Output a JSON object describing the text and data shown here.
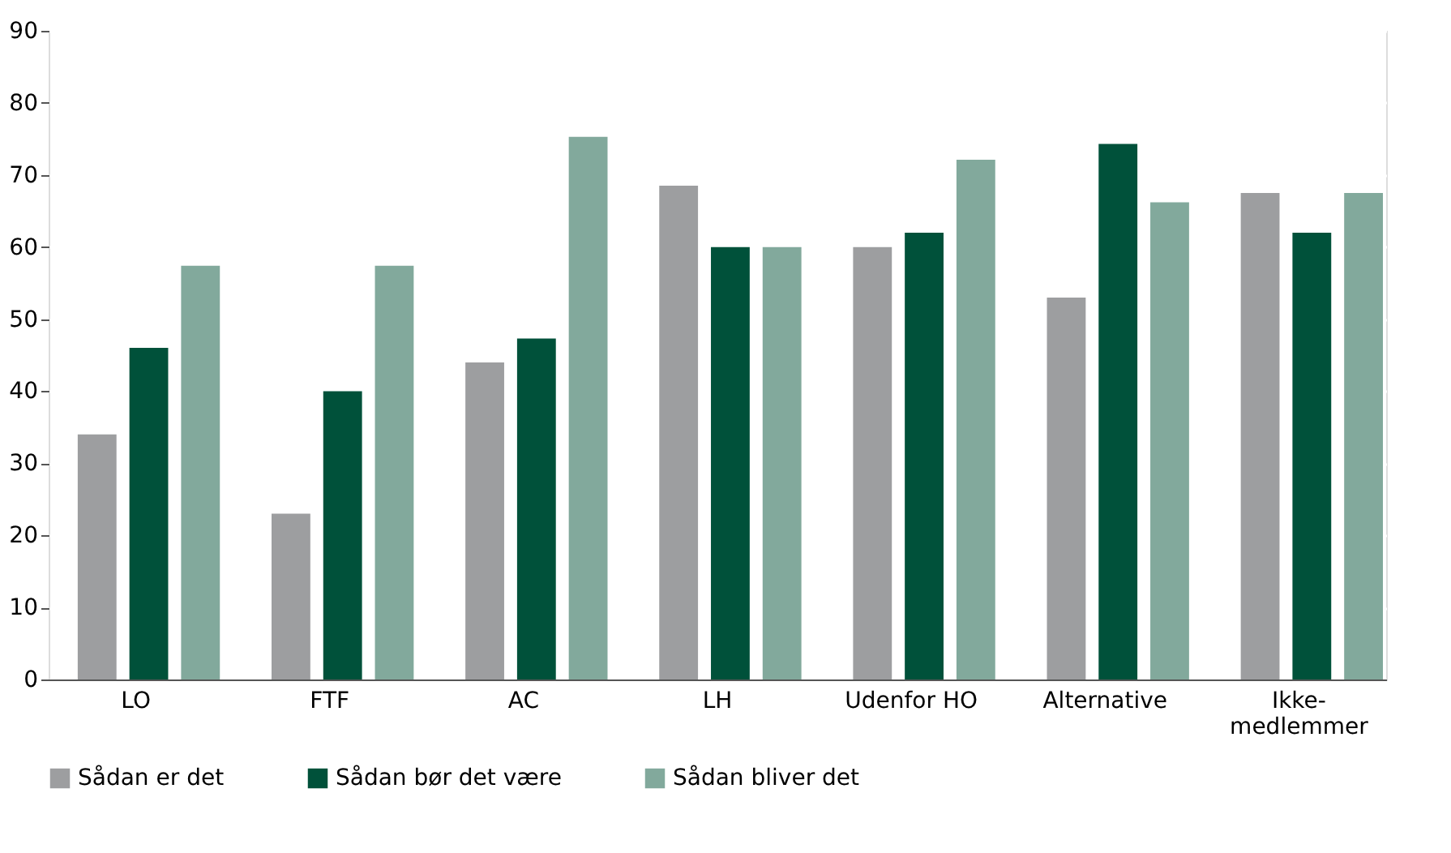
{
  "chart_data": {
    "type": "bar",
    "categories": [
      "LO",
      "FTF",
      "AC",
      "LH",
      "Udenfor HO",
      "Alternative",
      "Ikke-\nmedlemmer"
    ],
    "series": [
      {
        "name": "Sådan er det",
        "color": "#9d9ea0",
        "values": [
          34,
          23,
          44,
          68.5,
          60,
          53,
          67.5
        ]
      },
      {
        "name": "Sådan bør det være",
        "color": "#00513a",
        "values": [
          46,
          40,
          47.3,
          60,
          62,
          74.3,
          62
        ]
      },
      {
        "name": "Sådan bliver det",
        "color": "#82a99c",
        "values": [
          57.4,
          57.4,
          75.3,
          60,
          72.1,
          66.2,
          67.5
        ]
      }
    ],
    "ylim": [
      0,
      90
    ],
    "yticks": [
      0,
      10,
      20,
      30,
      40,
      50,
      60,
      70,
      80,
      90
    ],
    "grid": "y",
    "legend": "bottom"
  }
}
